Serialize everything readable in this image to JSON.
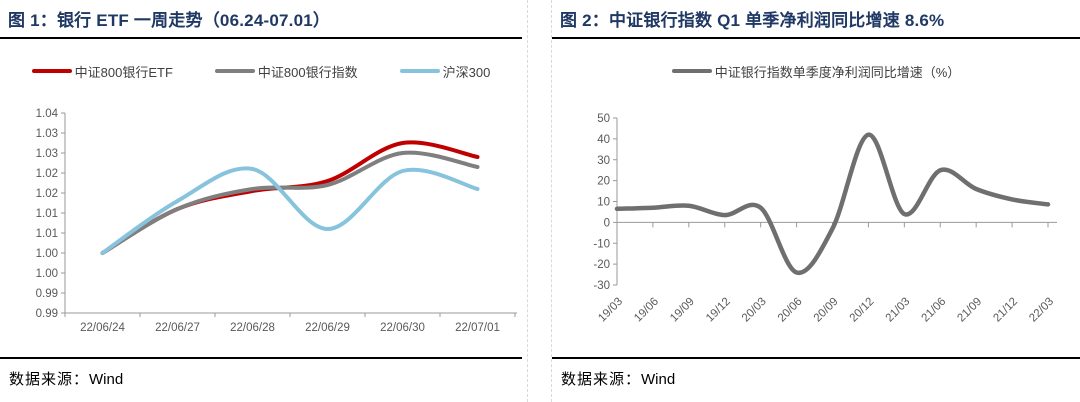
{
  "panels": [
    {
      "title": "图 1：银行 ETF 一周走势（06.24-07.01）",
      "source_label": "数据来源：",
      "source_value": "Wind"
    },
    {
      "title": "图 2：中证银行指数 Q1 单季净利润同比增速 8.6%",
      "source_label": "数据来源：",
      "source_value": "Wind"
    }
  ],
  "chart_data": [
    {
      "type": "line",
      "title": "银行 ETF 一周走势（06.24-07.01）",
      "categories": [
        "22/06/24",
        "22/06/27",
        "22/06/28",
        "22/06/29",
        "22/06/30",
        "22/07/01"
      ],
      "series": [
        {
          "name": "中证800银行ETF",
          "color": "#c00000",
          "values": [
            1.0,
            1.011,
            1.0155,
            1.018,
            1.0275,
            1.024
          ]
        },
        {
          "name": "中证800银行指数",
          "color": "#7f7f7f",
          "values": [
            1.0,
            1.011,
            1.016,
            1.017,
            1.025,
            1.0215
          ]
        },
        {
          "name": "沪深300",
          "color": "#87c3dd",
          "values": [
            1.0,
            1.013,
            1.021,
            1.006,
            1.0205,
            1.016
          ]
        }
      ],
      "y_axis": {
        "min": 0.985,
        "max": 1.035,
        "step": 0.005,
        "labels_top_to_bottom": [
          "1.04",
          "1.03",
          "1.03",
          "1.02",
          "1.02",
          "1.01",
          "1.01",
          "1.00",
          "1.00",
          "0.99",
          "0.99"
        ]
      },
      "x_axis_at": 0.985,
      "points_centered": true,
      "x_label_rotation": 0,
      "legend_position": "top",
      "grid": false
    },
    {
      "type": "line",
      "title": "中证银行指数 Q1 单季净利润同比增速 8.6%",
      "categories": [
        "19/03",
        "19/06",
        "19/09",
        "19/12",
        "20/03",
        "20/06",
        "20/09",
        "20/12",
        "21/03",
        "21/06",
        "21/09",
        "21/12",
        "22/03"
      ],
      "series": [
        {
          "name": "中证银行指数单季度净利润同比增速（%）",
          "color": "#6f6f6f",
          "values": [
            6.5,
            7,
            8,
            3.5,
            7,
            -24,
            -3,
            42,
            4,
            25,
            16,
            11,
            8.6
          ]
        }
      ],
      "y_axis": {
        "min": -30,
        "max": 50,
        "step": 10,
        "labels_top_to_bottom": [
          "50",
          "40",
          "30",
          "20",
          "10",
          "0",
          "-10",
          "-20",
          "-30"
        ]
      },
      "x_axis_at": 0,
      "points_centered": false,
      "x_label_rotation": -45,
      "legend_position": "top",
      "grid": false
    }
  ],
  "colors": {
    "title_navy": "#1f3864",
    "rule_black": "#000000",
    "axis_text_gray": "#595959",
    "divider_dash_gray": "#d9d9d9"
  }
}
